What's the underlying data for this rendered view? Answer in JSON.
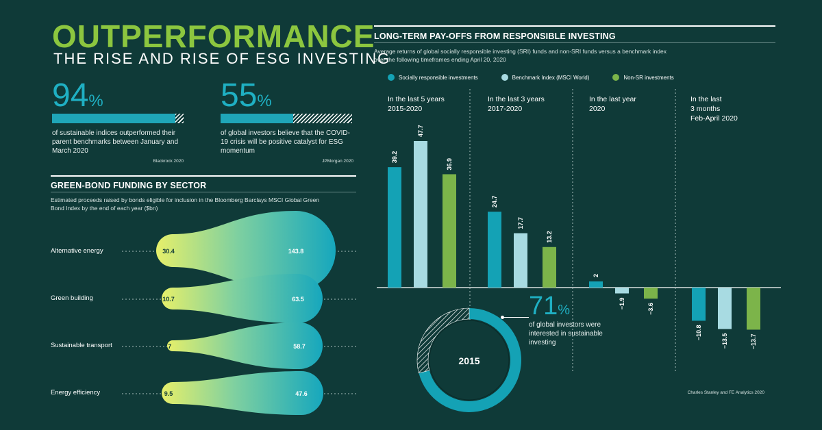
{
  "header": {
    "title": "OUTPERFORMANCE",
    "subtitle": "THE RISE AND RISE OF ESG INVESTING"
  },
  "stats": [
    {
      "value": "94",
      "unit": "%",
      "fraction": 0.94,
      "text": "of sustainable indices outperformed their parent benchmarks between January and March 2020",
      "source": "Blackrock 2020"
    },
    {
      "value": "55",
      "unit": "%",
      "fraction": 0.55,
      "text": "of global investors believe that the COVID-19 crisis will be positive catalyst for ESG momentum",
      "source": "JPMorgan 2020"
    }
  ],
  "green_bond": {
    "title": "GREEN-BOND FUNDING BY SECTOR",
    "description": "Estimated proceeds raised by bonds eligible for inclusion in the Bloomberg Barclays MSCI Global Green Bond Index by the end of each year ($bn)"
  },
  "long_term": {
    "title": "LONG-TERM PAY-OFFS FROM RESPONSIBLE INVESTING",
    "description": "Average returns of global socially responsible investing (SRI) funds and non-SRI funds versus a benchmark index over the following timeframes ending April 20, 2020",
    "source": "Charles Stanley and FE Analytics 2020"
  },
  "donut": {
    "value": "71",
    "unit": "%",
    "fraction": 0.71,
    "text": "of global investors were interested in sustainable investing",
    "year": "2015"
  },
  "colors": {
    "background": "#0f3a38",
    "sri": "#14a2b5",
    "benchmark": "#a8dbe2",
    "non_sri": "#7cb44a",
    "green": "#8cc63f",
    "gradient_start": "#e6ef6a",
    "gradient_end": "#16a7bd"
  },
  "chart_data": [
    {
      "type": "bar",
      "title": "LONG-TERM PAY-OFFS FROM RESPONSIBLE INVESTING",
      "categories": [
        [
          "In the last 5 years",
          "2015-2020"
        ],
        [
          "In the last 3 years",
          "2017-2020"
        ],
        [
          "In the last year",
          "2020"
        ],
        [
          "In the last",
          "3 months",
          "Feb-April 2020"
        ]
      ],
      "series": [
        {
          "name": "Socially responsible investments",
          "color": "#14a2b5",
          "values": [
            39.2,
            24.7,
            2,
            -10.8
          ]
        },
        {
          "name": "Benchmark Index (MSCI World)",
          "color": "#a8dbe2",
          "values": [
            47.7,
            17.7,
            -1.9,
            -13.5
          ]
        },
        {
          "name": "Non-SR investments",
          "color": "#7cb44a",
          "values": [
            36.9,
            13.2,
            -3.6,
            -13.7
          ]
        }
      ],
      "legend_position": "top"
    },
    {
      "type": "bar",
      "title": "GREEN-BOND FUNDING BY SECTOR",
      "categories": [
        "Alternative energy",
        "Green building",
        "Sustainable transport",
        "Energy efficiency"
      ],
      "series": [
        {
          "name": "start",
          "values": [
            30.4,
            10.7,
            3.7,
            9.5
          ]
        },
        {
          "name": "end",
          "values": [
            143.8,
            63.5,
            58.7,
            47.6
          ]
        }
      ]
    }
  ]
}
